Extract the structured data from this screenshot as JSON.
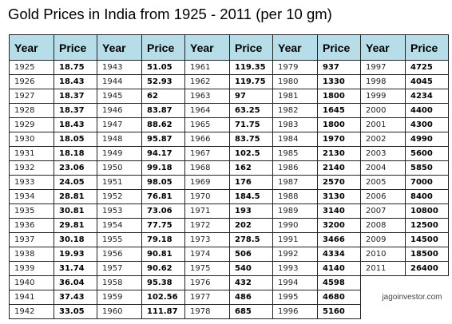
{
  "title": "Gold Prices in India from 1925 - 2011 (per 10 gm)",
  "header_year": "Year",
  "header_price": "Price",
  "credit": "jagoinvestor.com",
  "rows": [
    [
      [
        "1925",
        "18.75"
      ],
      [
        "1943",
        "51.05"
      ],
      [
        "1961",
        "119.35"
      ],
      [
        "1979",
        "937"
      ],
      [
        "1997",
        "4725"
      ]
    ],
    [
      [
        "1926",
        "18.43"
      ],
      [
        "1944",
        "52.93"
      ],
      [
        "1962",
        "119.75"
      ],
      [
        "1980",
        "1330"
      ],
      [
        "1998",
        "4045"
      ]
    ],
    [
      [
        "1927",
        "18.37"
      ],
      [
        "1945",
        "62"
      ],
      [
        "1963",
        "97"
      ],
      [
        "1981",
        "1800"
      ],
      [
        "1999",
        "4234"
      ]
    ],
    [
      [
        "1928",
        "18.37"
      ],
      [
        "1946",
        "83.87"
      ],
      [
        "1964",
        "63.25"
      ],
      [
        "1982",
        "1645"
      ],
      [
        "2000",
        "4400"
      ]
    ],
    [
      [
        "1929",
        "18.43"
      ],
      [
        "1947",
        "88.62"
      ],
      [
        "1965",
        "71.75"
      ],
      [
        "1983",
        "1800"
      ],
      [
        "2001",
        "4300"
      ]
    ],
    [
      [
        "1930",
        "18.05"
      ],
      [
        "1948",
        "95.87"
      ],
      [
        "1966",
        "83.75"
      ],
      [
        "1984",
        "1970"
      ],
      [
        "2002",
        "4990"
      ]
    ],
    [
      [
        "1931",
        "18.18"
      ],
      [
        "1949",
        "94.17"
      ],
      [
        "1967",
        "102.5"
      ],
      [
        "1985",
        "2130"
      ],
      [
        "2003",
        "5600"
      ]
    ],
    [
      [
        "1932",
        "23.06"
      ],
      [
        "1950",
        "99.18"
      ],
      [
        "1968",
        "162"
      ],
      [
        "1986",
        "2140"
      ],
      [
        "2004",
        "5850"
      ]
    ],
    [
      [
        "1933",
        "24.05"
      ],
      [
        "1951",
        "98.05"
      ],
      [
        "1969",
        "176"
      ],
      [
        "1987",
        "2570"
      ],
      [
        "2005",
        "7000"
      ]
    ],
    [
      [
        "1934",
        "28.81"
      ],
      [
        "1952",
        "76.81"
      ],
      [
        "1970",
        "184.5"
      ],
      [
        "1988",
        "3130"
      ],
      [
        "2006",
        "8400"
      ]
    ],
    [
      [
        "1935",
        "30.81"
      ],
      [
        "1953",
        "73.06"
      ],
      [
        "1971",
        "193"
      ],
      [
        "1989",
        "3140"
      ],
      [
        "2007",
        "10800"
      ]
    ],
    [
      [
        "1936",
        "29.81"
      ],
      [
        "1954",
        "77.75"
      ],
      [
        "1972",
        "202"
      ],
      [
        "1990",
        "3200"
      ],
      [
        "2008",
        "12500"
      ]
    ],
    [
      [
        "1937",
        "30.18"
      ],
      [
        "1955",
        "79.18"
      ],
      [
        "1973",
        "278.5"
      ],
      [
        "1991",
        "3466"
      ],
      [
        "2009",
        "14500"
      ]
    ],
    [
      [
        "1938",
        "19.93"
      ],
      [
        "1956",
        "90.81"
      ],
      [
        "1974",
        "506"
      ],
      [
        "1992",
        "4334"
      ],
      [
        "2010",
        "18500"
      ]
    ],
    [
      [
        "1939",
        "31.74"
      ],
      [
        "1957",
        "90.62"
      ],
      [
        "1975",
        "540"
      ],
      [
        "1993",
        "4140"
      ],
      [
        "2011",
        "26400"
      ]
    ],
    [
      [
        "1940",
        "36.04"
      ],
      [
        "1958",
        "95.38"
      ],
      [
        "1976",
        "432"
      ],
      [
        "1994",
        "4598"
      ]
    ],
    [
      [
        "1941",
        "37.43"
      ],
      [
        "1959",
        "102.56"
      ],
      [
        "1977",
        "486"
      ],
      [
        "1995",
        "4680"
      ]
    ],
    [
      [
        "1942",
        "33.05"
      ],
      [
        "1960",
        "111.87"
      ],
      [
        "1978",
        "685"
      ],
      [
        "1996",
        "5160"
      ]
    ]
  ]
}
